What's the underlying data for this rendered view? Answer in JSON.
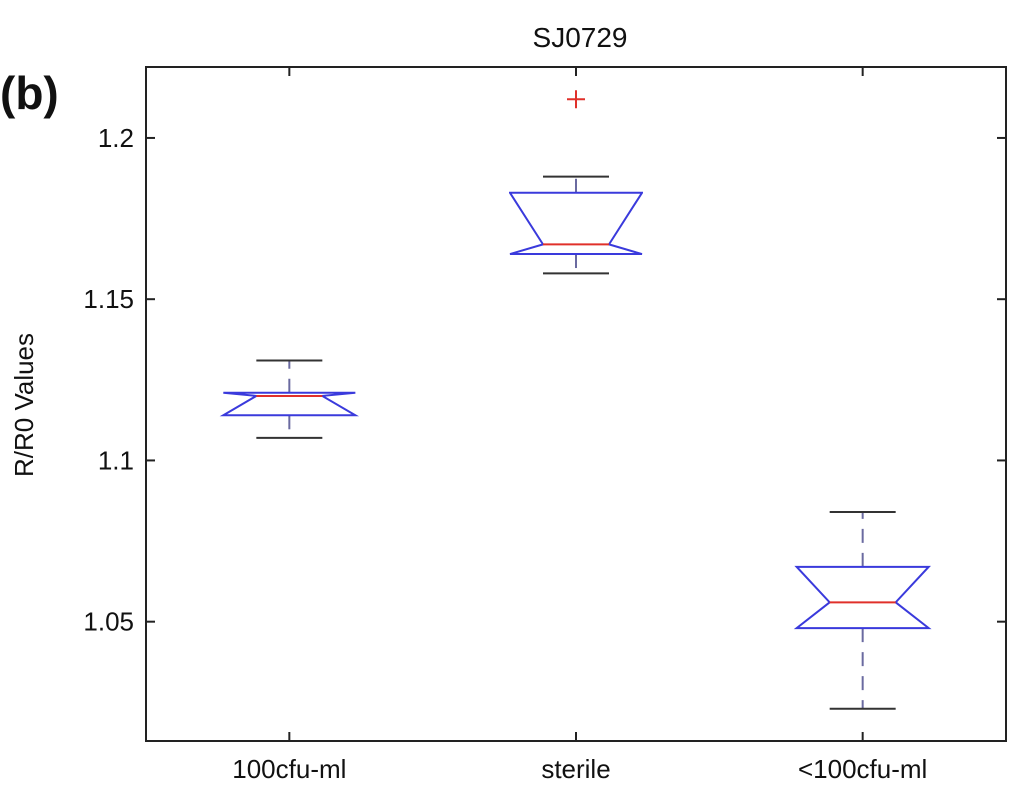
{
  "panel_label": "(b)",
  "chart_data": {
    "type": "boxplot",
    "title": "SJ0729",
    "xlabel": "",
    "ylabel": "R/R0 Values",
    "categories": [
      "100cfu-ml",
      "sterile",
      "<100cfu-ml"
    ],
    "ylim": [
      1.013,
      1.222
    ],
    "yticks": [
      1.05,
      1.1,
      1.15,
      1.2
    ],
    "ytick_labels": [
      "1.05",
      "1.1",
      "1.15",
      "1.2"
    ],
    "notched": true,
    "grid": false,
    "boxes": [
      {
        "category": "100cfu-ml",
        "whisker_low": 1.107,
        "q1": 1.114,
        "median": 1.12,
        "q3": 1.121,
        "whisker_high": 1.131,
        "notch_low": 1.114,
        "notch_high": 1.121,
        "outliers": []
      },
      {
        "category": "sterile",
        "whisker_low": 1.158,
        "q1": 1.164,
        "median": 1.167,
        "q3": 1.183,
        "whisker_high": 1.188,
        "notch_low": 1.164,
        "notch_high": 1.171,
        "outliers": [
          1.212
        ]
      },
      {
        "category": "<100cfu-ml",
        "whisker_low": 1.023,
        "q1": 1.048,
        "median": 1.056,
        "q3": 1.067,
        "whisker_high": 1.084,
        "notch_low": 1.048,
        "notch_high": 1.067,
        "outliers": []
      }
    ],
    "colors": {
      "box": "#3a3adc",
      "median": "#e0302a",
      "outlier": "#e0302a",
      "whisker": "#6a6aa0",
      "axis": "#222222"
    }
  }
}
